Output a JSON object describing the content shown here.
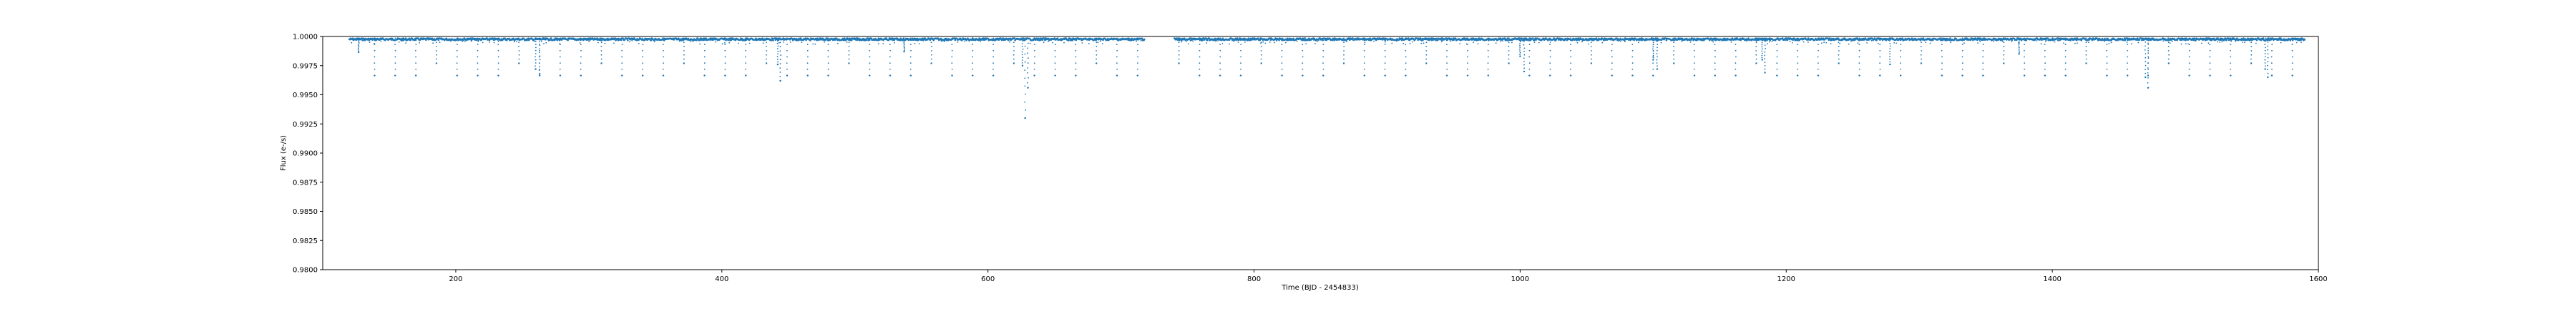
{
  "chart_data": {
    "type": "scatter",
    "title": "",
    "xlabel": "Time (BJD - 2454833)",
    "ylabel": "Flux (e-/s)",
    "xlim": [
      100,
      1600
    ],
    "ylim": [
      0.98,
      1.0
    ],
    "xticks": [
      200,
      400,
      600,
      800,
      1000,
      1200,
      1400,
      1600
    ],
    "yticks": [
      0.98,
      0.9825,
      0.985,
      0.9875,
      0.99,
      0.9925,
      0.995,
      0.9975,
      1.0
    ],
    "ytick_labels": [
      "0.9800",
      "0.9825",
      "0.9850",
      "0.9875",
      "0.9900",
      "0.9925",
      "0.9950",
      "0.9975",
      "1.0000"
    ],
    "grid": false,
    "marker_color": "#1f77b4",
    "coverage": {
      "start": 120,
      "end": 1590,
      "baseline_flux": 0.99985,
      "gaps": [
        [
          718,
          740
        ],
        [
          1596,
          1600
        ]
      ]
    },
    "periodic_transits": {
      "period": 15.5,
      "first_epoch": 139,
      "depth_flux": 0.99665,
      "shallow_depth_flux": 0.9977
    },
    "dips": [
      {
        "x": 127,
        "y": 0.99865
      },
      {
        "x": 260,
        "y": 0.9972
      },
      {
        "x": 263,
        "y": 0.9968
      },
      {
        "x": 442,
        "y": 0.9976
      },
      {
        "x": 444,
        "y": 0.9962
      },
      {
        "x": 537,
        "y": 0.9987
      },
      {
        "x": 626,
        "y": 0.9975
      },
      {
        "x": 628,
        "y": 0.993
      },
      {
        "x": 630,
        "y": 0.9956
      },
      {
        "x": 1000,
        "y": 0.9983
      },
      {
        "x": 1003,
        "y": 0.997
      },
      {
        "x": 1100,
        "y": 0.998
      },
      {
        "x": 1103,
        "y": 0.9972
      },
      {
        "x": 1182,
        "y": 0.998
      },
      {
        "x": 1184,
        "y": 0.9969
      },
      {
        "x": 1278,
        "y": 0.9976
      },
      {
        "x": 1375,
        "y": 0.9985
      },
      {
        "x": 1470,
        "y": 0.9965
      },
      {
        "x": 1472,
        "y": 0.9956
      },
      {
        "x": 1560,
        "y": 0.9972
      },
      {
        "x": 1562,
        "y": 0.9965
      }
    ]
  }
}
